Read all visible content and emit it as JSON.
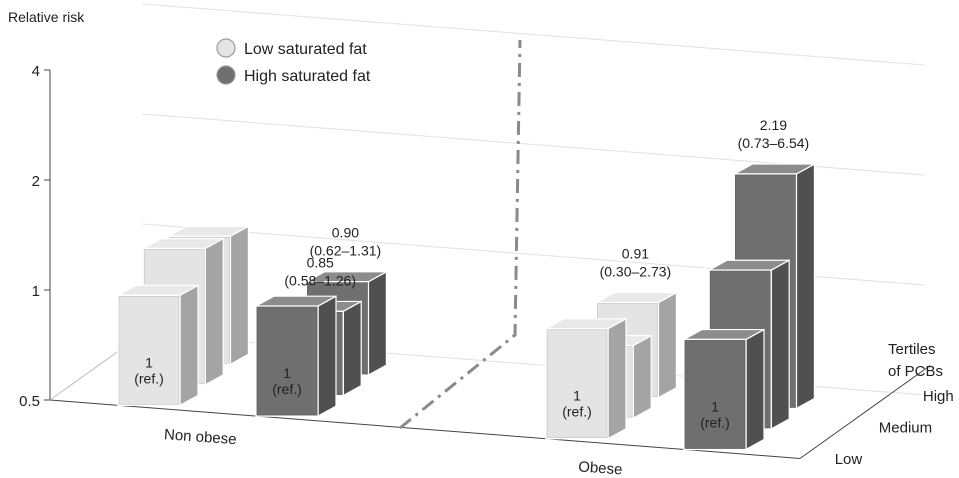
{
  "chart_data": {
    "type": "bar",
    "subtype": "3d-grouped-bar",
    "ylabel": "Relative risk",
    "yscale": "log",
    "ylim": [
      0.5,
      4
    ],
    "yticks": [
      "0.5",
      "1",
      "2",
      "4"
    ],
    "categories": [
      "Non obese",
      "Obese"
    ],
    "depth_axis_label": "Tertiles\nof PCBs",
    "depth_categories": [
      "Low",
      "Medium",
      "High"
    ],
    "legend": {
      "placement": "top-left",
      "entries": [
        "Low saturated fat",
        "High saturated fat"
      ]
    },
    "series": [
      {
        "name": "Low saturated fat",
        "color": "#e4e4e4",
        "values": {
          "Non obese": {
            "Low": 1,
            "Medium": 1.18,
            "High": 1.12
          },
          "Obese": {
            "Low": 1,
            "Medium": 0.79,
            "High": 0.91
          }
        }
      },
      {
        "name": "High saturated fat",
        "color": "#6f6f6f",
        "values": {
          "Non obese": {
            "Low": 1,
            "Medium": 0.85,
            "High": 0.9
          },
          "Obese": {
            "Low": 1,
            "Medium": 1.36,
            "High": 2.19
          }
        }
      }
    ],
    "annotations": [
      {
        "category": "Non obese",
        "series": "Low saturated fat",
        "tertile": "Low",
        "value": "1",
        "ci": "(ref.)"
      },
      {
        "category": "Non obese",
        "series": "High saturated fat",
        "tertile": "Low",
        "value": "1",
        "ci": "(ref.)"
      },
      {
        "category": "Non obese",
        "series": "High saturated fat",
        "tertile": "Medium",
        "value": "0.85",
        "ci": "(0.58–1.26)"
      },
      {
        "category": "Non obese",
        "series": "High saturated fat",
        "tertile": "High",
        "value": "0.90",
        "ci": "(0.62–1.31)"
      },
      {
        "category": "Obese",
        "series": "Low saturated fat",
        "tertile": "Low",
        "value": "1",
        "ci": "(ref.)"
      },
      {
        "category": "Obese",
        "series": "High saturated fat",
        "tertile": "Low",
        "value": "1",
        "ci": "(ref.)"
      },
      {
        "category": "Obese",
        "series": "Low saturated fat",
        "tertile": "High",
        "value": "0.91",
        "ci": "(0.30–2.73)"
      },
      {
        "category": "Obese",
        "series": "High saturated fat",
        "tertile": "High",
        "value": "2.19",
        "ci": "(0.73–6.54)"
      }
    ]
  }
}
